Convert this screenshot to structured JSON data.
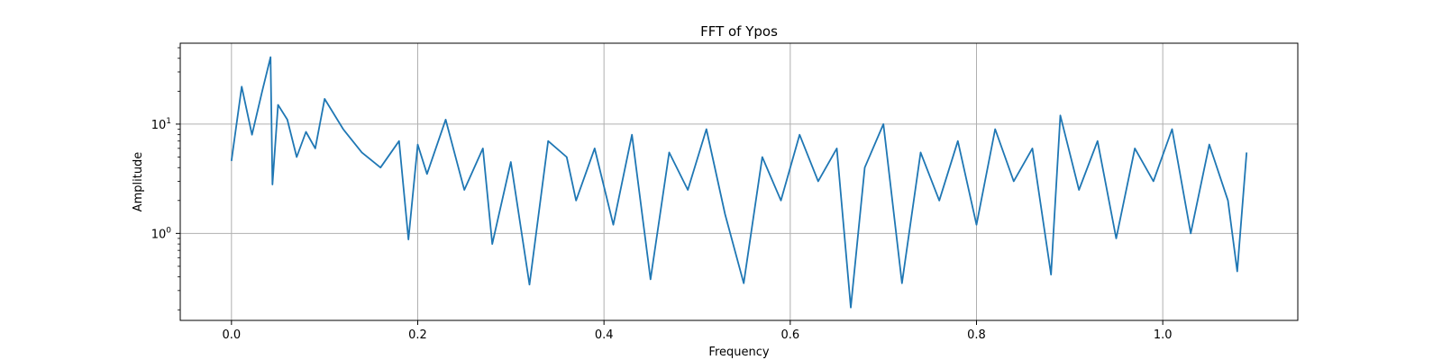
{
  "chart_data": {
    "type": "line",
    "title": "FFT of Ypos",
    "xlabel": "Frequency",
    "ylabel": "Amplitude",
    "xlim": [
      -0.055,
      1.145
    ],
    "ylim": [
      0.16,
      55
    ],
    "yscale": "log",
    "grid": true,
    "line_color": "#1f77b4",
    "x_ticks": [
      {
        "value": 0.0,
        "label": "0.0"
      },
      {
        "value": 0.2,
        "label": "0.2"
      },
      {
        "value": 0.4,
        "label": "0.4"
      },
      {
        "value": 0.6,
        "label": "0.6"
      },
      {
        "value": 0.8,
        "label": "0.8"
      },
      {
        "value": 1.0,
        "label": "1.0"
      }
    ],
    "y_ticks": [
      {
        "value": 1,
        "base": "10",
        "exp": "0"
      },
      {
        "value": 10,
        "base": "10",
        "exp": "1"
      }
    ],
    "series": [
      {
        "x": [
          0.0,
          0.011,
          0.022,
          0.033,
          0.042,
          0.044,
          0.05,
          0.06,
          0.07,
          0.08,
          0.09,
          0.1,
          0.12,
          0.14,
          0.16,
          0.18,
          0.19,
          0.2,
          0.21,
          0.23,
          0.25,
          0.27,
          0.28,
          0.3,
          0.32,
          0.34,
          0.36,
          0.37,
          0.39,
          0.41,
          0.43,
          0.45,
          0.47,
          0.49,
          0.51,
          0.53,
          0.55,
          0.57,
          0.59,
          0.61,
          0.63,
          0.65,
          0.665,
          0.68,
          0.7,
          0.72,
          0.74,
          0.76,
          0.78,
          0.8,
          0.82,
          0.84,
          0.86,
          0.88,
          0.89,
          0.91,
          0.93,
          0.95,
          0.97,
          0.99,
          1.01,
          1.03,
          1.05,
          1.07,
          1.08,
          1.09
        ],
        "y": [
          4.6,
          22.0,
          8.0,
          20.0,
          41.0,
          2.8,
          15.0,
          11.0,
          5.0,
          8.5,
          6.0,
          17.0,
          9.0,
          5.5,
          4.0,
          7.0,
          0.88,
          6.5,
          3.5,
          11.0,
          2.5,
          6.0,
          0.8,
          4.5,
          0.34,
          7.0,
          5.0,
          2.0,
          6.0,
          1.2,
          8.0,
          0.38,
          5.5,
          2.5,
          9.0,
          1.5,
          0.35,
          5.0,
          2.0,
          8.0,
          3.0,
          6.0,
          0.21,
          4.0,
          10.0,
          0.35,
          5.5,
          2.0,
          7.0,
          1.2,
          9.0,
          3.0,
          6.0,
          0.42,
          12.0,
          2.5,
          7.0,
          0.9,
          6.0,
          3.0,
          9.0,
          1.0,
          6.5,
          2.0,
          0.45,
          5.5
        ]
      }
    ]
  }
}
